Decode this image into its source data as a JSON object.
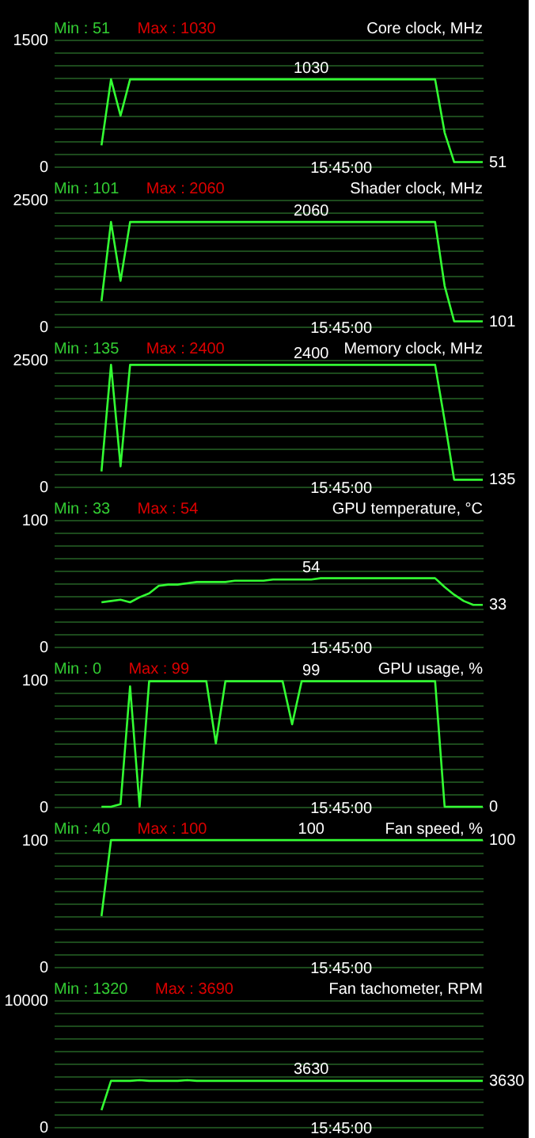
{
  "chart_data": [
    {
      "type": "line",
      "title": "Core clock, MHz",
      "annotations": [
        "Min : 51",
        "Max : 1030",
        "15:45:00",
        {
          "text": "1030",
          "y": 1030
        },
        "51"
      ],
      "categories": [
        null,
        null,
        null,
        null,
        null,
        null,
        null,
        null,
        null,
        null,
        null,
        null,
        null,
        null,
        null,
        null,
        null,
        null,
        null,
        null,
        null,
        null,
        null,
        null,
        null,
        null,
        null,
        null,
        null,
        null,
        null,
        null,
        null,
        null,
        null,
        null,
        null,
        null,
        null,
        null,
        null,
        null,
        null,
        null,
        null,
        null
      ],
      "series": [
        {
          "color": "#33ff33",
          "values": [
            null,
            null,
            null,
            null,
            null,
            250,
            1030,
            600,
            1030,
            1030,
            1030,
            1030,
            1030,
            1030,
            1030,
            1030,
            1030,
            1030,
            1030,
            1030,
            1030,
            1030,
            1030,
            1030,
            1030,
            1030,
            1030,
            1030,
            1030,
            1030,
            1030,
            1030,
            1030,
            1030,
            1030,
            1030,
            1030,
            1030,
            1030,
            1030,
            1030,
            400,
            51,
            51,
            51,
            51
          ]
        }
      ],
      "ylim": [
        0,
        1500
      ],
      "yticks": [
        0,
        {
          "value": 150,
          "label": null
        },
        {
          "value": 300,
          "label": null
        },
        {
          "value": 450,
          "label": null
        },
        {
          "value": 600,
          "label": null
        },
        {
          "value": 750,
          "label": null
        },
        {
          "value": 900,
          "label": null
        },
        {
          "value": 1050,
          "label": null
        },
        {
          "value": 1200,
          "label": null
        },
        {
          "value": 1350,
          "label": null
        },
        1500
      ],
      "grid": "y"
    },
    {
      "type": "line",
      "title": "Shader clock, MHz",
      "annotations": [
        "Min : 101",
        "Max : 2060",
        "15:45:00",
        {
          "text": "2060",
          "y": 2060
        },
        "101"
      ],
      "categories": [
        null,
        null,
        null,
        null,
        null,
        null,
        null,
        null,
        null,
        null,
        null,
        null,
        null,
        null,
        null,
        null,
        null,
        null,
        null,
        null,
        null,
        null,
        null,
        null,
        null,
        null,
        null,
        null,
        null,
        null,
        null,
        null,
        null,
        null,
        null,
        null,
        null,
        null,
        null,
        null,
        null,
        null,
        null,
        null,
        null,
        null
      ],
      "series": [
        {
          "color": "#33ff33",
          "values": [
            null,
            null,
            null,
            null,
            null,
            500,
            2060,
            900,
            2060,
            2060,
            2060,
            2060,
            2060,
            2060,
            2060,
            2060,
            2060,
            2060,
            2060,
            2060,
            2060,
            2060,
            2060,
            2060,
            2060,
            2060,
            2060,
            2060,
            2060,
            2060,
            2060,
            2060,
            2060,
            2060,
            2060,
            2060,
            2060,
            2060,
            2060,
            2060,
            2060,
            800,
            101,
            101,
            101,
            101
          ]
        }
      ],
      "ylim": [
        0,
        2500
      ],
      "yticks": [
        0,
        {
          "value": 250,
          "label": null
        },
        {
          "value": 500,
          "label": null
        },
        {
          "value": 750,
          "label": null
        },
        {
          "value": 1000,
          "label": null
        },
        {
          "value": 1250,
          "label": null
        },
        {
          "value": 1500,
          "label": null
        },
        {
          "value": 1750,
          "label": null
        },
        {
          "value": 2000,
          "label": null
        },
        {
          "value": 2250,
          "label": null
        },
        2500
      ],
      "grid": "y"
    },
    {
      "type": "line",
      "title": "Memory clock, MHz",
      "annotations": [
        "Min : 135",
        "Max : 2400",
        "15:45:00",
        {
          "text": "2400",
          "y": 2400
        },
        "135"
      ],
      "categories": [
        null,
        null,
        null,
        null,
        null,
        null,
        null,
        null,
        null,
        null,
        null,
        null,
        null,
        null,
        null,
        null,
        null,
        null,
        null,
        null,
        null,
        null,
        null,
        null,
        null,
        null,
        null,
        null,
        null,
        null,
        null,
        null,
        null,
        null,
        null,
        null,
        null,
        null,
        null,
        null,
        null,
        null,
        null,
        null,
        null,
        null
      ],
      "series": [
        {
          "color": "#33ff33",
          "values": [
            null,
            null,
            null,
            null,
            null,
            300,
            2400,
            400,
            2400,
            2400,
            2400,
            2400,
            2400,
            2400,
            2400,
            2400,
            2400,
            2400,
            2400,
            2400,
            2400,
            2400,
            2400,
            2400,
            2400,
            2400,
            2400,
            2400,
            2400,
            2400,
            2400,
            2400,
            2400,
            2400,
            2400,
            2400,
            2400,
            2400,
            2400,
            2400,
            2400,
            1300,
            135,
            135,
            135,
            135
          ]
        }
      ],
      "ylim": [
        0,
        2500
      ],
      "yticks": [
        0,
        {
          "value": 250,
          "label": null
        },
        {
          "value": 500,
          "label": null
        },
        {
          "value": 750,
          "label": null
        },
        {
          "value": 1000,
          "label": null
        },
        {
          "value": 1250,
          "label": null
        },
        {
          "value": 1500,
          "label": null
        },
        {
          "value": 1750,
          "label": null
        },
        {
          "value": 2000,
          "label": null
        },
        {
          "value": 2250,
          "label": null
        },
        2500
      ],
      "grid": "y"
    },
    {
      "type": "line",
      "title": "GPU temperature, °C",
      "annotations": [
        "Min : 33",
        "Max : 54",
        "15:45:00",
        {
          "text": "54",
          "y": 54
        },
        "33"
      ],
      "categories": [
        null,
        null,
        null,
        null,
        null,
        null,
        null,
        null,
        null,
        null,
        null,
        null,
        null,
        null,
        null,
        null,
        null,
        null,
        null,
        null,
        null,
        null,
        null,
        null,
        null,
        null,
        null,
        null,
        null,
        null,
        null,
        null,
        null,
        null,
        null,
        null,
        null,
        null,
        null,
        null,
        null,
        null,
        null,
        null,
        null,
        null
      ],
      "series": [
        {
          "color": "#33ff33",
          "values": [
            null,
            null,
            null,
            null,
            null,
            35,
            36,
            37,
            35,
            39,
            42,
            48,
            49,
            49,
            50,
            51,
            51,
            51,
            51,
            52,
            52,
            52,
            52,
            53,
            53,
            53,
            53,
            53,
            54,
            54,
            54,
            54,
            54,
            54,
            54,
            54,
            54,
            54,
            54,
            54,
            54,
            47,
            41,
            36,
            33,
            33
          ]
        }
      ],
      "ylim": [
        0,
        100
      ],
      "yticks": [
        0,
        {
          "value": 10,
          "label": null
        },
        {
          "value": 20,
          "label": null
        },
        {
          "value": 30,
          "label": null
        },
        {
          "value": 40,
          "label": null
        },
        {
          "value": 50,
          "label": null
        },
        {
          "value": 60,
          "label": null
        },
        {
          "value": 70,
          "label": null
        },
        {
          "value": 80,
          "label": null
        },
        {
          "value": 90,
          "label": null
        },
        100
      ],
      "grid": "y"
    },
    {
      "type": "line",
      "title": "GPU usage, %",
      "annotations": [
        "Min : 0",
        "Max : 99",
        "15:45:00",
        {
          "text": "99",
          "y": 99
        },
        "0"
      ],
      "categories": [
        null,
        null,
        null,
        null,
        null,
        null,
        null,
        null,
        null,
        null,
        null,
        null,
        null,
        null,
        null,
        null,
        null,
        null,
        null,
        null,
        null,
        null,
        null,
        null,
        null,
        null,
        null,
        null,
        null,
        null,
        null,
        null,
        null,
        null,
        null,
        null,
        null,
        null,
        null,
        null,
        null,
        null,
        null,
        null,
        null,
        null
      ],
      "series": [
        {
          "color": "#33ff33",
          "values": [
            null,
            null,
            null,
            null,
            null,
            0,
            0,
            2,
            95,
            0,
            99,
            99,
            99,
            99,
            99,
            99,
            99,
            50,
            99,
            99,
            99,
            99,
            99,
            99,
            99,
            65,
            99,
            99,
            99,
            99,
            99,
            99,
            99,
            99,
            99,
            99,
            99,
            99,
            99,
            99,
            99,
            0,
            0,
            0,
            0,
            0
          ]
        }
      ],
      "ylim": [
        0,
        100
      ],
      "yticks": [
        0,
        {
          "value": 10,
          "label": null
        },
        {
          "value": 20,
          "label": null
        },
        {
          "value": 30,
          "label": null
        },
        {
          "value": 40,
          "label": null
        },
        {
          "value": 50,
          "label": null
        },
        {
          "value": 60,
          "label": null
        },
        {
          "value": 70,
          "label": null
        },
        {
          "value": 80,
          "label": null
        },
        {
          "value": 90,
          "label": null
        },
        100
      ],
      "grid": "y"
    },
    {
      "type": "line",
      "title": "Fan speed, %",
      "annotations": [
        "Min : 40",
        "Max : 100",
        "15:45:00",
        "100",
        "100"
      ],
      "categories": [
        null,
        null,
        null,
        null,
        null,
        null,
        null,
        null,
        null,
        null,
        null,
        null,
        null,
        null,
        null,
        null,
        null,
        null,
        null,
        null,
        null,
        null,
        null,
        null,
        null,
        null,
        null,
        null,
        null,
        null,
        null,
        null,
        null,
        null,
        null,
        null,
        null,
        null,
        null,
        null,
        null,
        null,
        null,
        null,
        null,
        null
      ],
      "series": [
        {
          "color": "#33ff33",
          "values": [
            null,
            null,
            null,
            null,
            null,
            40,
            100,
            100,
            100,
            100,
            100,
            100,
            100,
            100,
            100,
            100,
            100,
            100,
            100,
            100,
            100,
            100,
            100,
            100,
            100,
            100,
            100,
            100,
            100,
            100,
            100,
            100,
            100,
            100,
            100,
            100,
            100,
            100,
            100,
            100,
            100,
            100,
            100,
            100,
            100,
            100
          ]
        }
      ],
      "ylim": [
        0,
        100
      ],
      "yticks": [
        0,
        {
          "value": 10,
          "label": null
        },
        {
          "value": 20,
          "label": null
        },
        {
          "value": 30,
          "label": null
        },
        {
          "value": 40,
          "label": null
        },
        {
          "value": 50,
          "label": null
        },
        {
          "value": 60,
          "label": null
        },
        {
          "value": 70,
          "label": null
        },
        {
          "value": 80,
          "label": null
        },
        {
          "value": 90,
          "label": null
        },
        100
      ],
      "grid": "y"
    },
    {
      "type": "line",
      "title": "Fan tachometer, RPM",
      "annotations": [
        "Min : 1320",
        "Max : 3690",
        "15:45:00",
        "3630",
        "3630"
      ],
      "categories": [
        null,
        null,
        null,
        null,
        null,
        null,
        null,
        null,
        null,
        null,
        null,
        null,
        null,
        null,
        null,
        null,
        null,
        null,
        null,
        null,
        null,
        null,
        null,
        null,
        null,
        null,
        null,
        null,
        null,
        null,
        null,
        null,
        null,
        null,
        null,
        null,
        null,
        null,
        null,
        null,
        null,
        null,
        null,
        null,
        null,
        null
      ],
      "series": [
        {
          "color": "#33ff33",
          "values": [
            null,
            null,
            null,
            null,
            null,
            1320,
            3630,
            3630,
            3630,
            3690,
            3630,
            3630,
            3630,
            3630,
            3690,
            3630,
            3630,
            3630,
            3630,
            3630,
            3630,
            3630,
            3630,
            3630,
            3630,
            3630,
            3630,
            3630,
            3630,
            3630,
            3630,
            3630,
            3630,
            3630,
            3630,
            3630,
            3630,
            3630,
            3630,
            3630,
            3630,
            3630,
            3630,
            3630,
            3630,
            3630
          ]
        }
      ],
      "ylim": [
        0,
        10000
      ],
      "yticks": [
        0,
        {
          "value": 1000,
          "label": null
        },
        {
          "value": 2000,
          "label": null
        },
        {
          "value": 3000,
          "label": null
        },
        {
          "value": 4000,
          "label": null
        },
        {
          "value": 5000,
          "label": null
        },
        {
          "value": 6000,
          "label": null
        },
        {
          "value": 7000,
          "label": null
        },
        {
          "value": 8000,
          "label": null
        },
        {
          "value": 9000,
          "label": null
        },
        10000
      ],
      "grid": "y"
    }
  ]
}
